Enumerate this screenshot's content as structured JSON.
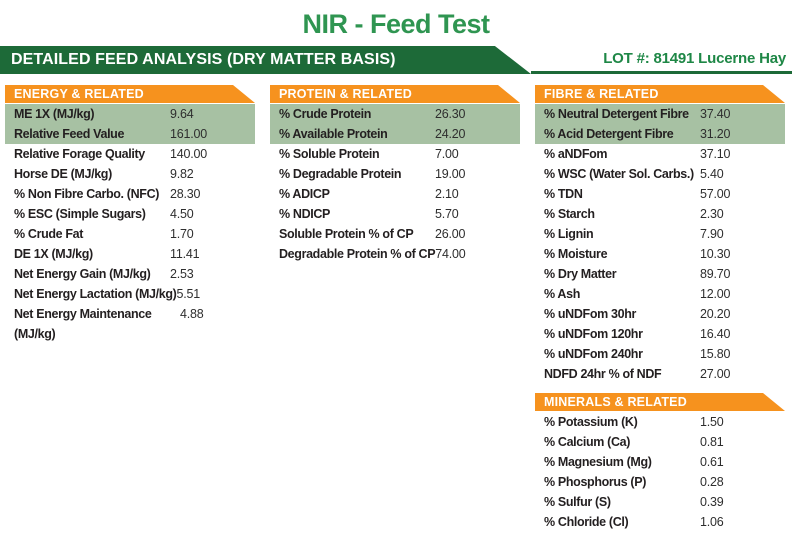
{
  "report": {
    "title": "NIR - Feed Test",
    "banner_title": "DETAILED FEED ANALYSIS (DRY MATTER BASIS)",
    "lot_label": "LOT #: 81491 Lucerne Hay"
  },
  "colors": {
    "orange": "#f6921e",
    "dark_green": "#1d6a38",
    "title_green": "#2f9551",
    "lot_green": "#1e8746",
    "highlight_green": "#a7c1a3"
  },
  "sections": [
    {
      "id": "energy",
      "title": "ENERGY & RELATED",
      "rows": [
        {
          "label": "ME 1X (MJ/kg)",
          "value": "9.64",
          "highlight": true
        },
        {
          "label": "Relative Feed Value",
          "value": "161.00",
          "highlight": true
        },
        {
          "label": "Relative Forage Quality",
          "value": "140.00",
          "highlight": false
        },
        {
          "label": "Horse DE (MJ/kg)",
          "value": "9.82",
          "highlight": false
        },
        {
          "label": "% Non Fibre Carbo. (NFC)",
          "value": "28.30",
          "highlight": false
        },
        {
          "label": "% ESC (Simple Sugars)",
          "value": "4.50",
          "highlight": false
        },
        {
          "label": "% Crude Fat",
          "value": "1.70",
          "highlight": false
        },
        {
          "label": "DE 1X (MJ/kg)",
          "value": "11.41",
          "highlight": false
        },
        {
          "label": "Net Energy Gain (MJ/kg)",
          "value": "2.53",
          "highlight": false
        },
        {
          "label": "Net Energy Lactation (MJ/kg)",
          "value": "5.51",
          "highlight": false
        },
        {
          "label": "Net Energy Maintenance (MJ/kg)",
          "value": "4.88",
          "highlight": false
        }
      ]
    },
    {
      "id": "protein",
      "title": "PROTEIN & RELATED",
      "rows": [
        {
          "label": "% Crude Protein",
          "value": "26.30",
          "highlight": true
        },
        {
          "label": "% Available Protein",
          "value": "24.20",
          "highlight": true
        },
        {
          "label": "% Soluble Protein",
          "value": "7.00",
          "highlight": false
        },
        {
          "label": "% Degradable Protein",
          "value": "19.00",
          "highlight": false
        },
        {
          "label": "% ADICP",
          "value": "2.10",
          "highlight": false
        },
        {
          "label": "% NDICP",
          "value": "5.70",
          "highlight": false
        },
        {
          "label": "Soluble Protein % of CP",
          "value": "26.00",
          "highlight": false
        },
        {
          "label": "Degradable Protein % of CP",
          "value": "74.00",
          "highlight": false
        }
      ]
    },
    {
      "id": "fibre",
      "title": "FIBRE & RELATED",
      "rows": [
        {
          "label": "% Neutral Detergent Fibre",
          "value": "37.40",
          "highlight": true
        },
        {
          "label": "% Acid Detergent Fibre",
          "value": "31.20",
          "highlight": true
        },
        {
          "label": "% aNDFom",
          "value": "37.10",
          "highlight": false
        },
        {
          "label": "% WSC (Water Sol. Carbs.)",
          "value": "5.40",
          "highlight": false
        },
        {
          "label": "% TDN",
          "value": "57.00",
          "highlight": false
        },
        {
          "label": "% Starch",
          "value": "2.30",
          "highlight": false
        },
        {
          "label": "% Lignin",
          "value": "7.90",
          "highlight": false
        },
        {
          "label": "% Moisture",
          "value": "10.30",
          "highlight": false
        },
        {
          "label": "% Dry Matter",
          "value": "89.70",
          "highlight": false
        },
        {
          "label": "% Ash",
          "value": "12.00",
          "highlight": false
        },
        {
          "label": "% uNDFom 30hr",
          "value": "20.20",
          "highlight": false
        },
        {
          "label": "% uNDFom 120hr",
          "value": "16.40",
          "highlight": false
        },
        {
          "label": "% uNDFom 240hr",
          "value": "15.80",
          "highlight": false
        },
        {
          "label": "NDFD 24hr % of NDF",
          "value": "27.00",
          "highlight": false
        }
      ]
    },
    {
      "id": "minerals",
      "title": "MINERALS & RELATED",
      "rows": [
        {
          "label": "% Potassium (K)",
          "value": "1.50",
          "highlight": false
        },
        {
          "label": "% Calcium (Ca)",
          "value": "0.81",
          "highlight": false
        },
        {
          "label": "% Magnesium (Mg)",
          "value": "0.61",
          "highlight": false
        },
        {
          "label": "% Phosphorus (P)",
          "value": "0.28",
          "highlight": false
        },
        {
          "label": "% Sulfur (S)",
          "value": "0.39",
          "highlight": false
        },
        {
          "label": "% Chloride (Cl)",
          "value": "1.06",
          "highlight": false
        }
      ]
    }
  ]
}
